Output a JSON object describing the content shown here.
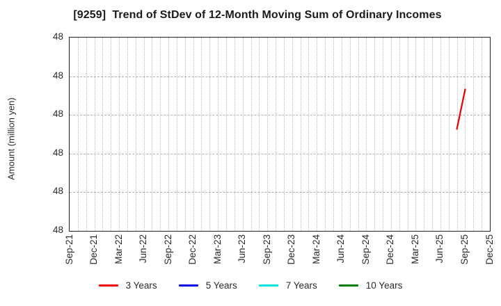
{
  "title": "[9259]  Trend of StDev of 12-Month Moving Sum of Ordinary Incomes",
  "y_axis_label": "Amount (million yen)",
  "chart_data": {
    "type": "line",
    "title": "[9259]  Trend of StDev of 12-Month Moving Sum of Ordinary Incomes",
    "ylabel": "Amount (million yen)",
    "xlabel": "",
    "x_tick_labels": [
      "Sep-21",
      "Dec-21",
      "Mar-22",
      "Jun-22",
      "Sep-22",
      "Dec-22",
      "Mar-23",
      "Jun-23",
      "Sep-23",
      "Dec-23",
      "Mar-24",
      "Jun-24",
      "Sep-24",
      "Dec-24",
      "Mar-25",
      "Jun-25",
      "Sep-25",
      "Dec-25"
    ],
    "months_per_tick": 3,
    "y_tick_labels": [
      "48",
      "48",
      "48",
      "48",
      "48",
      "48"
    ],
    "grid": true,
    "legend_position": "bottom",
    "note": "All y-axis tick labels display 48 (million yen); the only plotted data is a short red 3-Years segment rising from ~Aug-25 to Sep-25, values ~48.",
    "series": [
      {
        "name": "3 Years",
        "color": "#ee0000",
        "points": [
          {
            "x": "Aug-25",
            "month_index": 47,
            "value": 48,
            "y_frac": 0.527
          },
          {
            "x": "Sep-25",
            "month_index": 48,
            "value": 48,
            "y_frac": 0.732
          }
        ]
      },
      {
        "name": "5 Years",
        "color": "#0000ee",
        "points": []
      },
      {
        "name": "7 Years",
        "color": "#00e0e8",
        "points": []
      },
      {
        "name": "10 Years",
        "color": "#008000",
        "points": []
      }
    ]
  }
}
